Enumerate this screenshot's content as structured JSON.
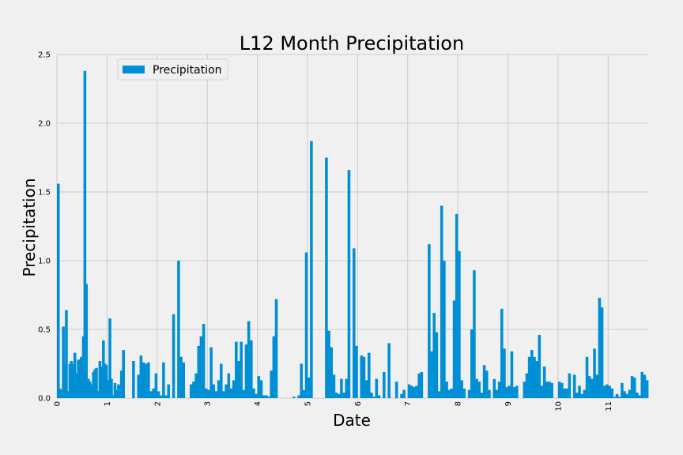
{
  "chart_data": {
    "type": "bar",
    "title": "L12 Month Precipitation",
    "xlabel": "Date",
    "ylabel": "Precipitation",
    "ylim": [
      0,
      2.5
    ],
    "yticks": [
      "0.0",
      "0.5",
      "1.0",
      "1.5",
      "2.0",
      "2.5"
    ],
    "xticks": [
      "0",
      "1",
      "2",
      "3",
      "4",
      "5",
      "6",
      "7",
      "8",
      "9",
      "10",
      "11"
    ],
    "xlim": [
      0,
      11.8
    ],
    "grid": true,
    "legend": {
      "placement": "upper-left"
    },
    "color": "#008fd5",
    "series": [
      {
        "name": "Precipitation",
        "x": [
          0.0,
          0.03,
          0.06,
          0.1,
          0.13,
          0.16,
          0.2,
          0.23,
          0.26,
          0.3,
          0.33,
          0.36,
          0.4,
          0.43,
          0.46,
          0.5,
          0.53,
          0.56,
          0.6,
          0.63,
          0.66,
          0.7,
          0.73,
          0.76,
          0.8,
          0.83,
          0.86,
          0.9,
          0.93,
          0.96,
          1.0,
          1.03,
          1.06,
          1.1,
          1.13,
          1.16,
          1.2,
          1.23,
          1.26,
          1.3,
          1.5,
          1.6,
          1.65,
          1.7,
          1.75,
          1.8,
          1.85,
          1.9,
          1.95,
          2.0,
          2.05,
          2.1,
          2.15,
          2.2,
          2.3,
          2.4,
          2.45,
          2.5,
          2.65,
          2.7,
          2.75,
          2.8,
          2.85,
          2.9,
          2.95,
          3.0,
          3.05,
          3.1,
          3.15,
          3.2,
          3.25,
          3.3,
          3.35,
          3.4,
          3.45,
          3.5,
          3.55,
          3.6,
          3.65,
          3.7,
          3.75,
          3.8,
          3.85,
          3.9,
          3.95,
          4.0,
          4.05,
          4.1,
          4.15,
          4.2,
          4.25,
          4.3,
          4.35,
          4.7,
          4.8,
          4.85,
          4.9,
          4.95,
          5.0,
          5.05,
          5.35,
          5.4,
          5.45,
          5.5,
          5.55,
          5.6,
          5.65,
          5.7,
          5.75,
          5.8,
          5.9,
          5.95,
          6.05,
          6.1,
          6.15,
          6.2,
          6.25,
          6.3,
          6.35,
          6.4,
          6.5,
          6.6,
          6.75,
          6.85,
          6.9,
          7.0,
          7.05,
          7.1,
          7.15,
          7.2,
          7.25,
          7.4,
          7.45,
          7.5,
          7.55,
          7.6,
          7.65,
          7.7,
          7.75,
          7.8,
          7.85,
          7.9,
          7.95,
          8.0,
          8.05,
          8.1,
          8.2,
          8.25,
          8.3,
          8.35,
          8.4,
          8.45,
          8.5,
          8.55,
          8.6,
          8.7,
          8.75,
          8.8,
          8.85,
          8.9,
          8.95,
          9.0,
          9.05,
          9.1,
          9.15,
          9.3,
          9.35,
          9.4,
          9.45,
          9.5,
          9.55,
          9.6,
          9.65,
          9.7,
          9.75,
          9.8,
          9.85,
          10.0,
          10.05,
          10.1,
          10.15,
          10.2,
          10.3,
          10.35,
          10.4,
          10.45,
          10.5,
          10.55,
          10.6,
          10.65,
          10.7,
          10.75,
          10.8,
          10.85,
          10.9,
          10.95,
          11.0,
          11.05,
          11.1,
          11.15,
          11.2,
          11.25,
          11.3,
          11.35,
          11.4,
          11.45,
          11.5,
          11.55,
          11.6,
          11.65,
          11.7,
          11.75
        ],
        "values": [
          1.56,
          0.07,
          0.06,
          0.52,
          0.25,
          0.64,
          0.05,
          0.25,
          0.27,
          0.25,
          0.33,
          0.18,
          0.28,
          0.28,
          0.3,
          0.45,
          2.38,
          0.83,
          0.14,
          0.12,
          0.1,
          0.19,
          0.21,
          0.22,
          0.05,
          0.27,
          0.23,
          0.42,
          0.25,
          0.24,
          0.13,
          0.58,
          0.14,
          0.02,
          0.11,
          0.06,
          0.1,
          0.09,
          0.2,
          0.35,
          0.27,
          0.17,
          0.31,
          0.26,
          0.25,
          0.26,
          0.05,
          0.07,
          0.18,
          0.05,
          0.02,
          0.26,
          0.02,
          0.1,
          0.61,
          1.0,
          0.3,
          0.26,
          0.1,
          0.12,
          0.18,
          0.38,
          0.45,
          0.54,
          0.07,
          0.06,
          0.37,
          0.1,
          0.05,
          0.13,
          0.25,
          0.05,
          0.1,
          0.18,
          0.07,
          0.13,
          0.41,
          0.27,
          0.41,
          0.06,
          0.39,
          0.56,
          0.42,
          0.07,
          0.03,
          0.16,
          0.13,
          0.02,
          0.02,
          0.01,
          0.2,
          0.45,
          0.72,
          0.01,
          0.02,
          0.25,
          0.06,
          1.06,
          0.15,
          1.87,
          1.75,
          0.49,
          0.37,
          0.17,
          0.04,
          0.03,
          0.14,
          0.04,
          0.14,
          1.66,
          1.09,
          0.38,
          0.31,
          0.3,
          0.13,
          0.33,
          0.04,
          0.01,
          0.14,
          0.02,
          0.19,
          0.4,
          0.12,
          0.03,
          0.06,
          0.1,
          0.09,
          0.08,
          0.09,
          0.18,
          0.19,
          1.12,
          0.34,
          0.62,
          0.48,
          0.05,
          1.4,
          1.0,
          0.12,
          0.06,
          0.07,
          0.71,
          1.34,
          1.07,
          0.13,
          0.07,
          0.06,
          0.5,
          0.93,
          0.14,
          0.12,
          0.04,
          0.24,
          0.2,
          0.06,
          0.14,
          0.06,
          0.12,
          0.65,
          0.36,
          0.08,
          0.09,
          0.34,
          0.08,
          0.09,
          0.12,
          0.18,
          0.3,
          0.35,
          0.3,
          0.27,
          0.46,
          0.09,
          0.23,
          0.12,
          0.12,
          0.11,
          0.12,
          0.11,
          0.07,
          0.07,
          0.18,
          0.17,
          0.04,
          0.09,
          0.03,
          0.06,
          0.3,
          0.16,
          0.14,
          0.36,
          0.17,
          0.73,
          0.66,
          0.09,
          0.1,
          0.09,
          0.07,
          0.01,
          0.03,
          0.01,
          0.11,
          0.05,
          0.03,
          0.06,
          0.16,
          0.15,
          0.04,
          0.02,
          0.19,
          0.17,
          0.13
        ]
      }
    ]
  }
}
